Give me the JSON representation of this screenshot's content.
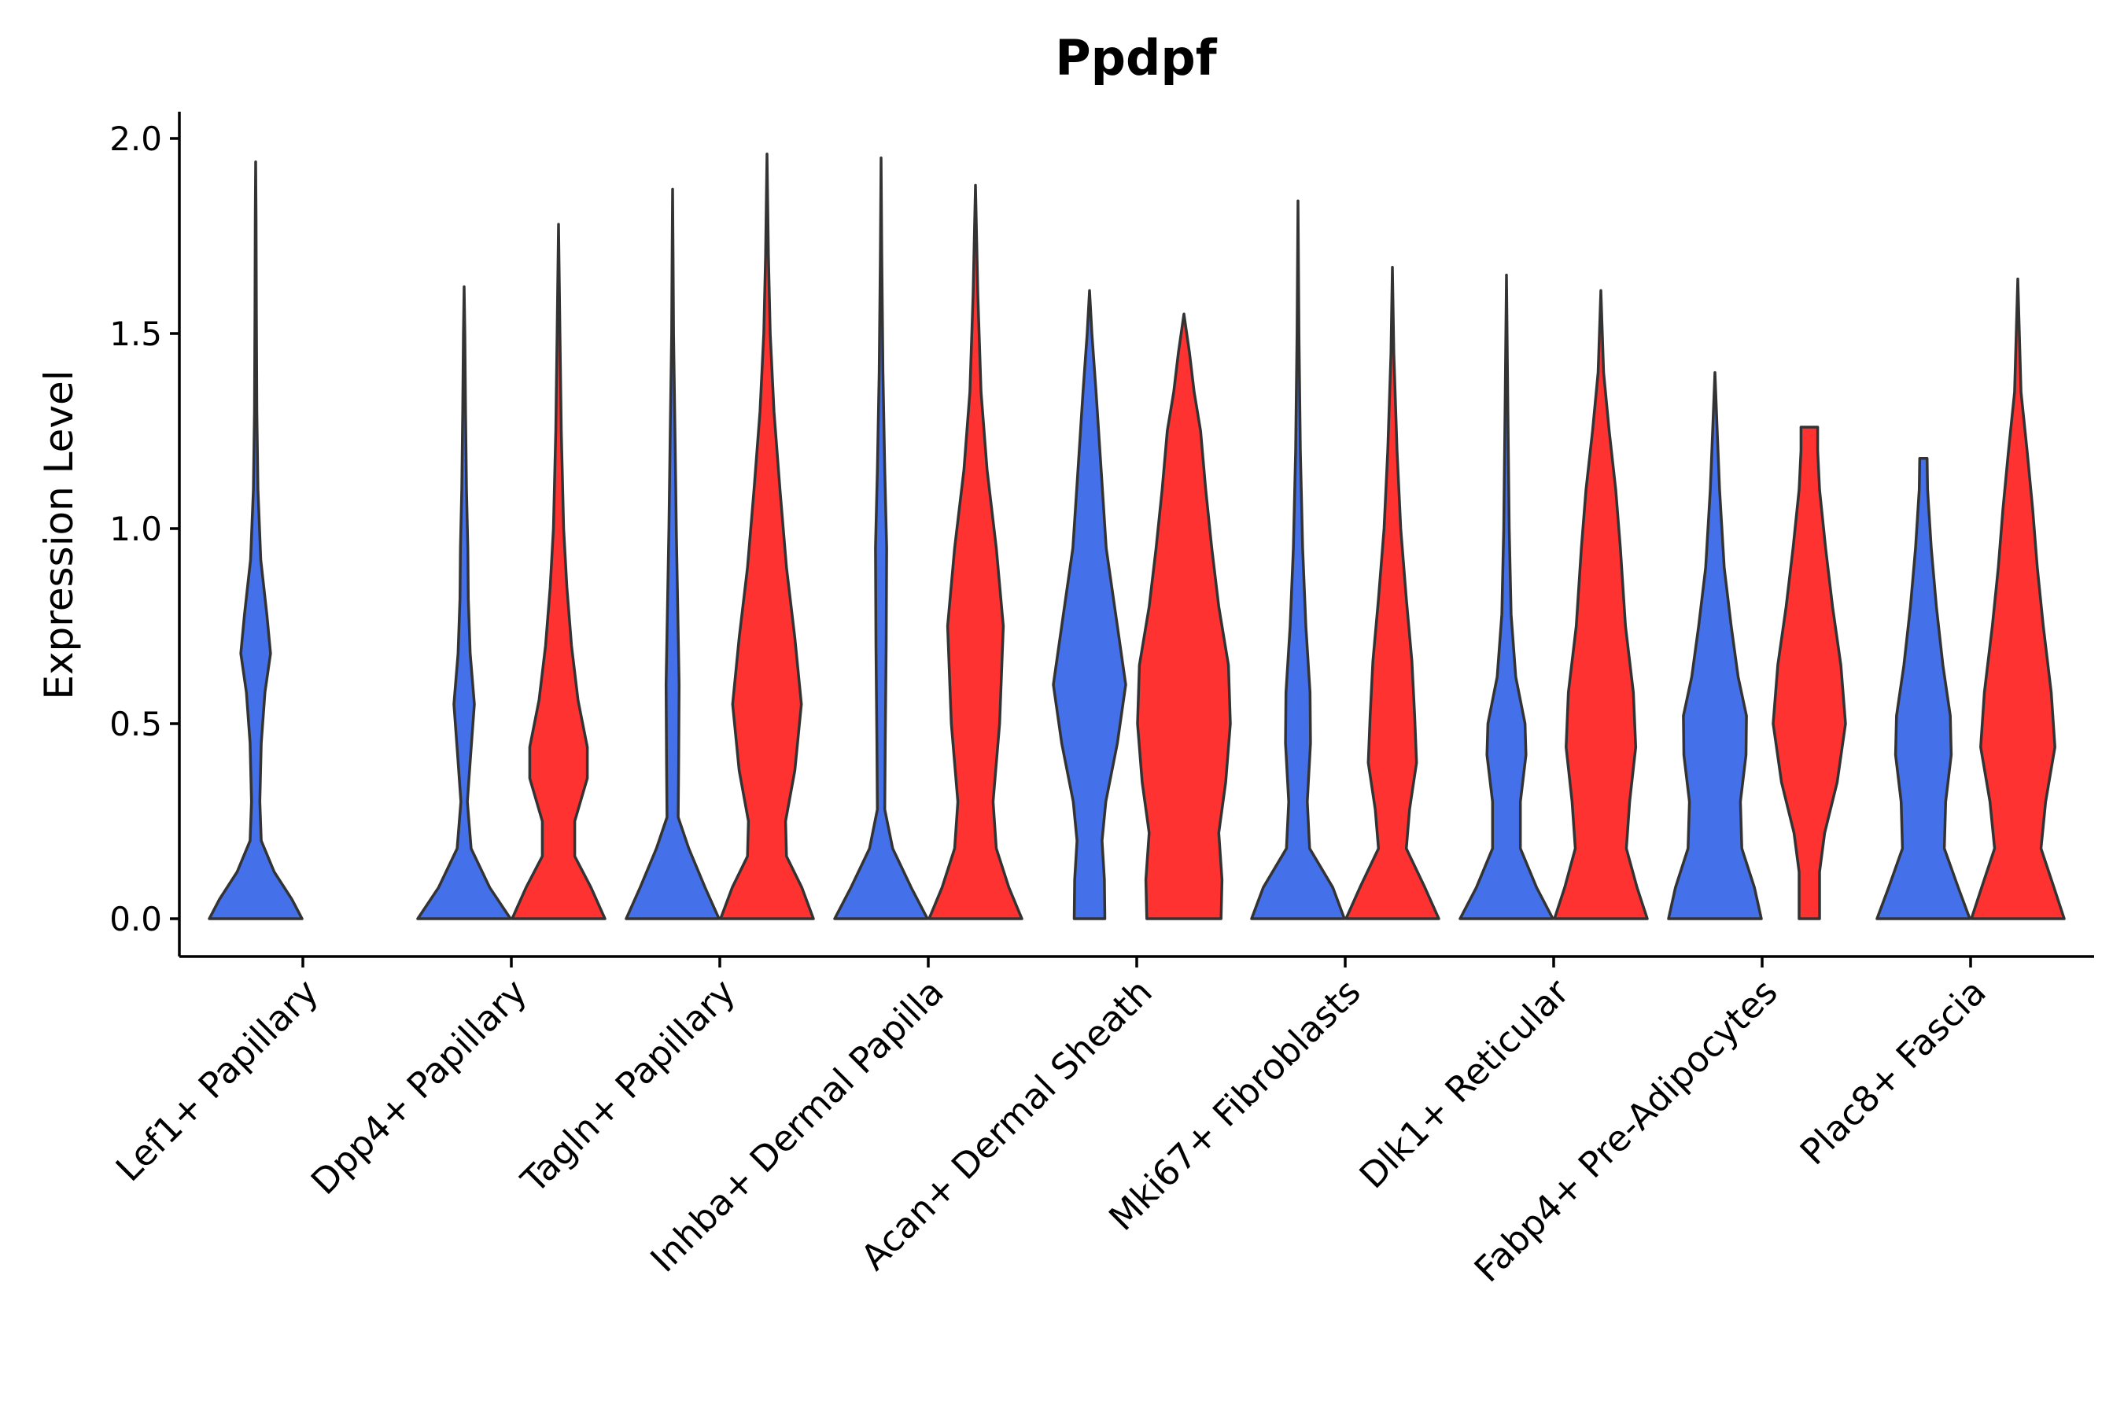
{
  "chart_data": {
    "type": "violin",
    "title": "Ppdpf",
    "xlabel": "",
    "ylabel": "Expression Level",
    "ylim": [
      -0.1,
      2.07
    ],
    "yticks": [
      "0.0",
      "0.5",
      "1.0",
      "1.5",
      "2.0"
    ],
    "ytick_values": [
      0.0,
      0.5,
      1.0,
      1.5,
      2.0
    ],
    "colors": {
      "blue": "#4470EA",
      "red": "#FF3232"
    },
    "categories": [
      "Lef1+ Papillary",
      "Dpp4+ Papillary",
      "Tagln+ Papillary",
      "Inhba+ Dermal Papilla",
      "Acan+ Dermal Sheath",
      "Mki67+ Fibroblasts",
      "Dlk1+ Reticular",
      "Fabp4+ Pre-Adipocytes",
      "Plac8+ Fascia"
    ],
    "series": [
      {
        "name": "blue",
        "violins": [
          {
            "category": "Lef1+ Papillary",
            "max": 1.94,
            "density": [
              [
                0,
                1.0
              ],
              [
                0.05,
                0.78
              ],
              [
                0.12,
                0.4
              ],
              [
                0.2,
                0.12
              ],
              [
                0.3,
                0.09
              ],
              [
                0.45,
                0.12
              ],
              [
                0.58,
                0.2
              ],
              [
                0.68,
                0.32
              ],
              [
                0.78,
                0.24
              ],
              [
                0.92,
                0.11
              ],
              [
                1.1,
                0.05
              ],
              [
                1.3,
                0.025
              ],
              [
                1.55,
                0.015
              ],
              [
                1.8,
                0.008
              ],
              [
                1.94,
                0
              ]
            ]
          },
          {
            "category": "Dpp4+ Papillary",
            "max": 1.62,
            "density": [
              [
                0,
                1.0
              ],
              [
                0.08,
                0.55
              ],
              [
                0.18,
                0.15
              ],
              [
                0.3,
                0.07
              ],
              [
                0.42,
                0.14
              ],
              [
                0.55,
                0.22
              ],
              [
                0.68,
                0.13
              ],
              [
                0.82,
                0.09
              ],
              [
                0.95,
                0.08
              ],
              [
                1.1,
                0.05
              ],
              [
                1.3,
                0.03
              ],
              [
                1.5,
                0.015
              ],
              [
                1.62,
                0
              ]
            ]
          },
          {
            "category": "Tagln+ Papillary",
            "max": 1.87,
            "density": [
              [
                0,
                1.0
              ],
              [
                0.08,
                0.7
              ],
              [
                0.18,
                0.35
              ],
              [
                0.26,
                0.12
              ],
              [
                0.4,
                0.13
              ],
              [
                0.6,
                0.14
              ],
              [
                0.8,
                0.11
              ],
              [
                1.0,
                0.08
              ],
              [
                1.25,
                0.05
              ],
              [
                1.5,
                0.02
              ],
              [
                1.7,
                0.01
              ],
              [
                1.87,
                0
              ]
            ]
          },
          {
            "category": "Inhba+ Dermal Papilla",
            "max": 1.95,
            "density": [
              [
                0,
                1.0
              ],
              [
                0.08,
                0.65
              ],
              [
                0.18,
                0.25
              ],
              [
                0.28,
                0.08
              ],
              [
                0.45,
                0.09
              ],
              [
                0.7,
                0.11
              ],
              [
                0.95,
                0.12
              ],
              [
                1.15,
                0.08
              ],
              [
                1.4,
                0.04
              ],
              [
                1.7,
                0.015
              ],
              [
                1.95,
                0
              ]
            ]
          },
          {
            "category": "Acan+ Dermal Sheath",
            "max": 1.61,
            "density": [
              [
                0,
                0.33
              ],
              [
                0.1,
                0.32
              ],
              [
                0.2,
                0.27
              ],
              [
                0.3,
                0.35
              ],
              [
                0.45,
                0.6
              ],
              [
                0.6,
                0.78
              ],
              [
                0.75,
                0.6
              ],
              [
                0.95,
                0.36
              ],
              [
                1.15,
                0.25
              ],
              [
                1.35,
                0.14
              ],
              [
                1.5,
                0.05
              ],
              [
                1.61,
                0
              ]
            ]
          },
          {
            "category": "Mki67+ Fibroblasts",
            "max": 1.84,
            "density": [
              [
                0,
                1.0
              ],
              [
                0.08,
                0.75
              ],
              [
                0.18,
                0.25
              ],
              [
                0.3,
                0.2
              ],
              [
                0.45,
                0.27
              ],
              [
                0.58,
                0.26
              ],
              [
                0.75,
                0.17
              ],
              [
                0.95,
                0.1
              ],
              [
                1.2,
                0.05
              ],
              [
                1.5,
                0.02
              ],
              [
                1.84,
                0
              ]
            ]
          },
          {
            "category": "Dlk1+ Reticular",
            "max": 1.65,
            "density": [
              [
                0,
                1.0
              ],
              [
                0.08,
                0.65
              ],
              [
                0.18,
                0.3
              ],
              [
                0.3,
                0.3
              ],
              [
                0.42,
                0.42
              ],
              [
                0.5,
                0.4
              ],
              [
                0.62,
                0.2
              ],
              [
                0.78,
                0.1
              ],
              [
                1.0,
                0.06
              ],
              [
                1.3,
                0.03
              ],
              [
                1.65,
                0
              ]
            ]
          },
          {
            "category": "Fabp4+ Pre-Adipocytes",
            "max": 1.4,
            "density": [
              [
                0,
                1.0
              ],
              [
                0.08,
                0.85
              ],
              [
                0.18,
                0.58
              ],
              [
                0.3,
                0.55
              ],
              [
                0.42,
                0.67
              ],
              [
                0.52,
                0.68
              ],
              [
                0.62,
                0.5
              ],
              [
                0.75,
                0.35
              ],
              [
                0.9,
                0.2
              ],
              [
                1.1,
                0.1
              ],
              [
                1.25,
                0.05
              ],
              [
                1.4,
                0
              ]
            ]
          },
          {
            "category": "Plac8+ Fascia",
            "max": 1.18,
            "density": [
              [
                0,
                1.0
              ],
              [
                0.08,
                0.75
              ],
              [
                0.18,
                0.45
              ],
              [
                0.3,
                0.48
              ],
              [
                0.42,
                0.6
              ],
              [
                0.52,
                0.58
              ],
              [
                0.65,
                0.42
              ],
              [
                0.8,
                0.28
              ],
              [
                0.95,
                0.17
              ],
              [
                1.1,
                0.09
              ],
              [
                1.18,
                0.08
              ]
            ]
          }
        ]
      },
      {
        "name": "red",
        "violins": [
          {
            "category": "Dpp4+ Papillary",
            "max": 1.78,
            "density": [
              [
                0,
                1.0
              ],
              [
                0.08,
                0.7
              ],
              [
                0.16,
                0.35
              ],
              [
                0.25,
                0.35
              ],
              [
                0.36,
                0.62
              ],
              [
                0.44,
                0.62
              ],
              [
                0.56,
                0.42
              ],
              [
                0.7,
                0.28
              ],
              [
                0.85,
                0.18
              ],
              [
                1.0,
                0.11
              ],
              [
                1.25,
                0.06
              ],
              [
                1.5,
                0.03
              ],
              [
                1.78,
                0
              ]
            ]
          },
          {
            "category": "Tagln+ Papillary",
            "max": 1.96,
            "density": [
              [
                0,
                1.0
              ],
              [
                0.08,
                0.75
              ],
              [
                0.16,
                0.42
              ],
              [
                0.25,
                0.4
              ],
              [
                0.38,
                0.6
              ],
              [
                0.55,
                0.74
              ],
              [
                0.72,
                0.6
              ],
              [
                0.9,
                0.42
              ],
              [
                1.1,
                0.28
              ],
              [
                1.3,
                0.15
              ],
              [
                1.5,
                0.07
              ],
              [
                1.7,
                0.03
              ],
              [
                1.96,
                0
              ]
            ]
          },
          {
            "category": "Inhba+ Dermal Papilla",
            "max": 1.88,
            "density": [
              [
                0,
                1.0
              ],
              [
                0.08,
                0.72
              ],
              [
                0.18,
                0.45
              ],
              [
                0.3,
                0.38
              ],
              [
                0.5,
                0.52
              ],
              [
                0.75,
                0.6
              ],
              [
                0.95,
                0.45
              ],
              [
                1.15,
                0.25
              ],
              [
                1.35,
                0.12
              ],
              [
                1.6,
                0.05
              ],
              [
                1.88,
                0
              ]
            ]
          },
          {
            "category": "Acan+ Dermal Sheath",
            "max": 1.55,
            "density": [
              [
                0,
                0.8
              ],
              [
                0.1,
                0.82
              ],
              [
                0.22,
                0.75
              ],
              [
                0.35,
                0.9
              ],
              [
                0.5,
                1.0
              ],
              [
                0.65,
                0.96
              ],
              [
                0.8,
                0.75
              ],
              [
                0.95,
                0.6
              ],
              [
                1.1,
                0.47
              ],
              [
                1.25,
                0.36
              ],
              [
                1.35,
                0.22
              ],
              [
                1.45,
                0.12
              ],
              [
                1.55,
                0
              ]
            ]
          },
          {
            "category": "Mki67+ Fibroblasts",
            "max": 1.67,
            "density": [
              [
                0,
                1.0
              ],
              [
                0.08,
                0.7
              ],
              [
                0.18,
                0.3
              ],
              [
                0.28,
                0.37
              ],
              [
                0.4,
                0.52
              ],
              [
                0.52,
                0.48
              ],
              [
                0.66,
                0.42
              ],
              [
                0.82,
                0.3
              ],
              [
                1.0,
                0.18
              ],
              [
                1.2,
                0.1
              ],
              [
                1.45,
                0.03
              ],
              [
                1.67,
                0
              ]
            ]
          },
          {
            "category": "Dlk1+ Reticular",
            "max": 1.61,
            "density": [
              [
                0,
                1.0
              ],
              [
                0.08,
                0.78
              ],
              [
                0.18,
                0.55
              ],
              [
                0.3,
                0.62
              ],
              [
                0.44,
                0.75
              ],
              [
                0.58,
                0.7
              ],
              [
                0.75,
                0.53
              ],
              [
                0.95,
                0.42
              ],
              [
                1.1,
                0.32
              ],
              [
                1.25,
                0.18
              ],
              [
                1.4,
                0.06
              ],
              [
                1.61,
                0
              ]
            ]
          },
          {
            "category": "Fabp4+ Pre-Adipocytes",
            "max": 1.26,
            "density": [
              [
                0,
                0.22
              ],
              [
                0.12,
                0.22
              ],
              [
                0.22,
                0.33
              ],
              [
                0.35,
                0.6
              ],
              [
                0.5,
                0.78
              ],
              [
                0.65,
                0.68
              ],
              [
                0.8,
                0.5
              ],
              [
                0.95,
                0.35
              ],
              [
                1.1,
                0.22
              ],
              [
                1.2,
                0.18
              ],
              [
                1.26,
                0.18
              ]
            ]
          },
          {
            "category": "Plac8+ Fascia",
            "max": 1.64,
            "density": [
              [
                0,
                1.0
              ],
              [
                0.08,
                0.78
              ],
              [
                0.18,
                0.5
              ],
              [
                0.3,
                0.6
              ],
              [
                0.44,
                0.8
              ],
              [
                0.58,
                0.72
              ],
              [
                0.75,
                0.55
              ],
              [
                0.9,
                0.42
              ],
              [
                1.05,
                0.32
              ],
              [
                1.2,
                0.2
              ],
              [
                1.35,
                0.07
              ],
              [
                1.64,
                0
              ]
            ]
          }
        ]
      }
    ]
  }
}
